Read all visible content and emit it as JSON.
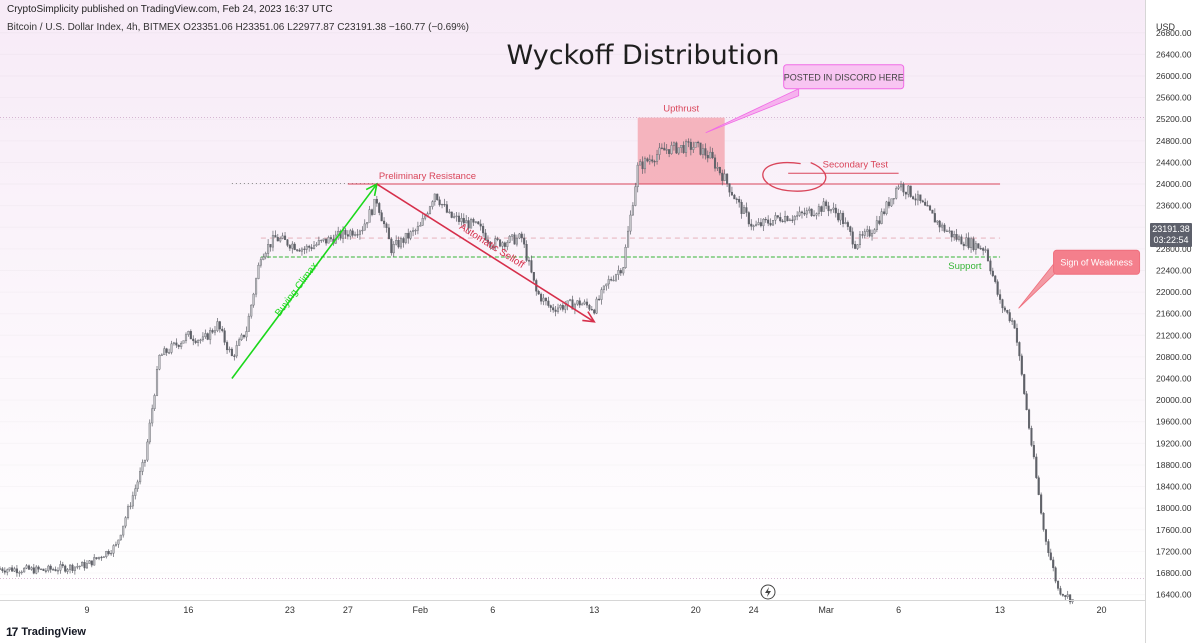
{
  "header": {
    "published": "CryptoSimplicity published on TradingView.com, Feb 24, 2023 16:37 UTC",
    "symbol_line": "Bitcoin / U.S. Dollar Index, 4h, BITMEX  O23351.06  H23351.06  L22977.87  C23191.38  −160.77 (−0.69%)"
  },
  "footer": {
    "brand": "TradingView",
    "logo_mark": "17"
  },
  "colors": {
    "background_top": "#f8eef8",
    "candle": "#5f6168",
    "candle_light": "#c4c4c8",
    "upthrust_box": "#f4a9b4",
    "resistance": "#d9455a",
    "support": "#35b535",
    "buying_climax_arrow": "#1bd81b",
    "selloff_arrow": "#d62f4b",
    "discord_callout": "#f06ce6",
    "weakness_callout": "#ef6f7d"
  },
  "current_price": {
    "value": "23191.38",
    "countdown": "03:22:54"
  },
  "chart_data": {
    "type": "candlestick",
    "title": "Wyckoff Distribution",
    "symbol": "Bitcoin / U.S. Dollar Index",
    "interval": "4h",
    "exchange": "BITMEX",
    "y_axis_label": "USD",
    "y_ticks": [
      16400,
      16800,
      17200,
      17600,
      18000,
      18400,
      18800,
      19200,
      19600,
      20000,
      20400,
      20800,
      21200,
      21600,
      22000,
      22400,
      22800,
      23200,
      23600,
      24000,
      24400,
      24800,
      25200,
      25600,
      26000,
      26400,
      26800
    ],
    "y_range": [
      16300,
      27000
    ],
    "x_tick_labels": [
      "9",
      "16",
      "23",
      "27",
      "Feb",
      "6",
      "13",
      "20",
      "24",
      "Mar",
      "6",
      "13",
      "20"
    ],
    "x_tick_dates": [
      "2023-01-09",
      "2023-01-16",
      "2023-01-23",
      "2023-01-27",
      "2023-02-01",
      "2023-02-06",
      "2023-02-13",
      "2023-02-20",
      "2023-02-24",
      "2023-03-01",
      "2023-03-06",
      "2023-03-13",
      "2023-03-20"
    ],
    "x_range": [
      "2023-01-03",
      "2023-03-23"
    ],
    "path": [
      [
        "2023-01-03",
        16880
      ],
      [
        "2023-01-06",
        16850
      ],
      [
        "2023-01-09",
        16950
      ],
      [
        "2023-01-11",
        17300
      ],
      [
        "2023-01-12",
        18100
      ],
      [
        "2023-01-13",
        18900
      ],
      [
        "2023-01-14",
        20800
      ],
      [
        "2023-01-16",
        21200
      ],
      [
        "2023-01-17",
        21100
      ],
      [
        "2023-01-18",
        21400
      ],
      [
        "2023-01-19",
        20800
      ],
      [
        "2023-01-20",
        21300
      ],
      [
        "2023-01-21",
        22700
      ],
      [
        "2023-01-22",
        23000
      ],
      [
        "2023-01-24",
        22800
      ],
      [
        "2023-01-26",
        23000
      ],
      [
        "2023-01-27",
        23100
      ],
      [
        "2023-01-28",
        23200
      ],
      [
        "2023-01-29",
        23700
      ],
      [
        "2023-01-30",
        22800
      ],
      [
        "2023-02-01",
        23200
      ],
      [
        "2023-02-02",
        23850
      ],
      [
        "2023-02-03",
        23400
      ],
      [
        "2023-02-05",
        23200
      ],
      [
        "2023-02-06",
        22900
      ],
      [
        "2023-02-08",
        23000
      ],
      [
        "2023-02-09",
        22000
      ],
      [
        "2023-02-10",
        21700
      ],
      [
        "2023-02-12",
        21800
      ],
      [
        "2023-02-13",
        21700
      ],
      [
        "2023-02-14",
        22200
      ],
      [
        "2023-02-15",
        22500
      ],
      [
        "2023-02-16",
        24300
      ],
      [
        "2023-02-17",
        24500
      ],
      [
        "2023-02-18",
        24650
      ],
      [
        "2023-02-20",
        24700
      ],
      [
        "2023-02-21",
        24500
      ],
      [
        "2023-02-22",
        24100
      ],
      [
        "2023-02-23",
        23600
      ],
      [
        "2023-02-24",
        23200
      ],
      [
        "2023-02-26",
        23400
      ],
      [
        "2023-02-27",
        23400
      ],
      [
        "2023-03-01",
        23600
      ],
      [
        "2023-03-02",
        23400
      ],
      [
        "2023-03-03",
        22900
      ],
      [
        "2023-03-04",
        23100
      ],
      [
        "2023-03-05",
        23500
      ],
      [
        "2023-03-06",
        24000
      ],
      [
        "2023-03-07",
        23800
      ],
      [
        "2023-03-08",
        23500
      ],
      [
        "2023-03-09",
        23200
      ],
      [
        "2023-03-10",
        23000
      ],
      [
        "2023-03-11",
        22900
      ],
      [
        "2023-03-12",
        22800
      ],
      [
        "2023-03-13",
        21800
      ],
      [
        "2023-03-14",
        21400
      ],
      [
        "2023-03-15",
        19500
      ],
      [
        "2023-03-16",
        17600
      ],
      [
        "2023-03-17",
        16500
      ],
      [
        "2023-03-18",
        16300
      ]
    ],
    "levels": [
      {
        "label": "Preliminary Resistance",
        "price": 24000,
        "from": "2023-01-27",
        "to": "2023-03-13"
      },
      {
        "label": "Support",
        "price": 22650,
        "from": "2023-01-21",
        "to": "2023-03-13"
      }
    ],
    "dotted_reference_lines": [
      25230,
      16700
    ],
    "upthrust_zone": {
      "label": "Upthrust",
      "from": "2023-02-16",
      "to": "2023-02-22",
      "low": 24000,
      "high": 25230
    },
    "annotations": [
      {
        "text": "Buying Climax",
        "type": "arrow",
        "from": [
          "2023-01-19",
          20400
        ],
        "to": [
          "2023-01-29",
          24000
        ]
      },
      {
        "text": "Automatic Selloff",
        "type": "arrow",
        "from": [
          "2023-01-29",
          24000
        ],
        "to": [
          "2023-02-13",
          21450
        ]
      },
      {
        "text": "Secondary Test",
        "type": "highlight",
        "at": [
          "2023-02-26",
          24100
        ]
      },
      {
        "text": "POSTED IN DISCORD HERE",
        "type": "callout",
        "at": [
          "2023-02-20",
          24950
        ]
      },
      {
        "text": "Sign of Weakness",
        "type": "callout",
        "at": [
          "2023-03-14",
          21700
        ]
      }
    ]
  }
}
